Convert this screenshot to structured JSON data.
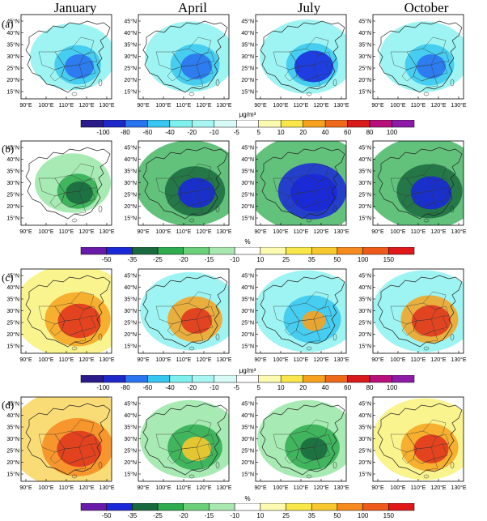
{
  "columns": [
    "January",
    "April",
    "July",
    "October"
  ],
  "rows": [
    {
      "label": "(a)",
      "colorbar": "conc",
      "maps": [
        {
          "lead": "#7ef0ee",
          "mid": "#36c6f0",
          "core": "#2a74f0",
          "extent": 0.55,
          "intensity": 0.5
        },
        {
          "lead": "#7ef0ee",
          "mid": "#36c6f0",
          "core": "#2a74f0",
          "extent": 0.6,
          "intensity": 0.55
        },
        {
          "lead": "#7ef0ee",
          "mid": "#36c6f0",
          "core": "#1b2fe0",
          "extent": 0.65,
          "intensity": 0.75
        },
        {
          "lead": "#7ef0ee",
          "mid": "#36c6f0",
          "core": "#2a74f0",
          "extent": 0.6,
          "intensity": 0.5
        }
      ]
    },
    {
      "label": "(b)",
      "colorbar": "pct",
      "maps": [
        {
          "lead": "#8be39a",
          "mid": "#2eac4f",
          "core": "#1b6a3f",
          "extent": 0.45,
          "intensity": 0.45
        },
        {
          "lead": "#2eac4f",
          "mid": "#1b6a3f",
          "core": "#1a28d8",
          "extent": 0.8,
          "intensity": 0.7
        },
        {
          "lead": "#2eac4f",
          "mid": "#1a28d8",
          "core": "#1a28d8",
          "extent": 0.95,
          "intensity": 0.95
        },
        {
          "lead": "#2eac4f",
          "mid": "#1b6a3f",
          "core": "#1a28d8",
          "extent": 0.9,
          "intensity": 0.8
        }
      ]
    },
    {
      "label": "(c)",
      "colorbar": "conc",
      "maps": [
        {
          "lead": "#f8f06a",
          "mid": "#f6a21e",
          "core": "#e0381e",
          "extent": 0.9,
          "intensity": 0.85
        },
        {
          "lead": "#7ef0ee",
          "mid": "#f6a21e",
          "core": "#e0381e",
          "extent": 0.7,
          "intensity": 0.55
        },
        {
          "lead": "#7ef0ee",
          "mid": "#36c6f0",
          "core": "#f6a21e",
          "extent": 0.75,
          "intensity": 0.35
        },
        {
          "lead": "#7ef0ee",
          "mid": "#f6a21e",
          "core": "#e0381e",
          "extent": 0.75,
          "intensity": 0.75
        }
      ]
    },
    {
      "label": "(d)",
      "colorbar": "pct",
      "maps": [
        {
          "lead": "#f8d04a",
          "mid": "#f68a1e",
          "core": "#e0381e",
          "extent": 1.0,
          "intensity": 0.9
        },
        {
          "lead": "#8be39a",
          "mid": "#2eac4f",
          "core": "#f6c82e",
          "extent": 0.7,
          "intensity": 0.5
        },
        {
          "lead": "#8be39a",
          "mid": "#2eac4f",
          "core": "#1b6a3f",
          "extent": 0.7,
          "intensity": 0.45
        },
        {
          "lead": "#f8f06a",
          "mid": "#f6a21e",
          "core": "#e0381e",
          "extent": 0.75,
          "intensity": 0.65
        }
      ]
    }
  ],
  "axes": {
    "x_ticks": [
      "90°E",
      "100°E",
      "110°E",
      "120°E",
      "130°E"
    ],
    "y_ticks": [
      "45°N",
      "40°N",
      "35°N",
      "30°N",
      "25°N",
      "20°N",
      "15°N"
    ]
  },
  "colorbars": {
    "conc": {
      "unit": "μg/m³",
      "labels": [
        "-100",
        "-80",
        "-60",
        "-40",
        "-20",
        "-10",
        "-5",
        "5",
        "10",
        "20",
        "40",
        "60",
        "80",
        "100"
      ],
      "colors": [
        "#2a1a8a",
        "#1e28c8",
        "#2a74f0",
        "#36c6f0",
        "#7ef0ee",
        "#a8f6f2",
        "#d8fbf8",
        "#ffffff",
        "#fcfab0",
        "#f8e64a",
        "#f6a21e",
        "#ee6a1a",
        "#d81a1a",
        "#b8107a",
        "#8e1aa8"
      ]
    },
    "pct": {
      "unit": "%",
      "labels": [
        "-50",
        "-35",
        "-25",
        "-20",
        "-15",
        "-10",
        "10",
        "25",
        "35",
        "50",
        "100",
        "150"
      ],
      "colors": [
        "#6a1aa8",
        "#1a28d8",
        "#1b6a3f",
        "#2eac4f",
        "#6cd07a",
        "#a8e8b0",
        "#ffffff",
        "#fcfab0",
        "#f8e64a",
        "#f6c82e",
        "#f68a1e",
        "#ee5a1a",
        "#e0181a"
      ]
    }
  }
}
